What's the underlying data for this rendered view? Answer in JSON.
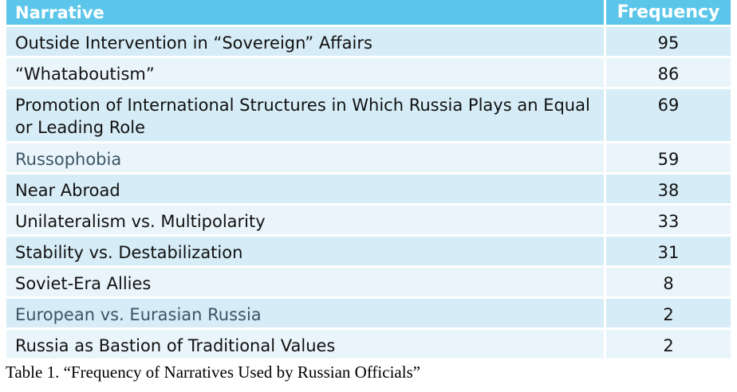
{
  "table": {
    "headers": {
      "narrative": "Narrative",
      "frequency": "Frequency"
    },
    "rows": [
      {
        "narrative": "Outside Intervention in “Sovereign” Affairs",
        "frequency": "95"
      },
      {
        "narrative": "“Whataboutism”",
        "frequency": "86"
      },
      {
        "narrative": "Promotion of International Structures in Which Russia Plays an Equal or Leading Role",
        "frequency": "69"
      },
      {
        "narrative": "Russophobia",
        "frequency": "59"
      },
      {
        "narrative": "Near Abroad",
        "frequency": "38"
      },
      {
        "narrative": "Unilateralism vs. Multipolarity",
        "frequency": "33"
      },
      {
        "narrative": "Stability vs. Destabilization",
        "frequency": "31"
      },
      {
        "narrative": "Soviet-Era Allies",
        "frequency": "8"
      },
      {
        "narrative": "European vs. Eurasian Russia",
        "frequency": "2"
      },
      {
        "narrative": "Russia as Bastion of Traditional Values",
        "frequency": "2"
      }
    ]
  },
  "caption": "Table 1. “Frequency of Narratives Used by Russian Officials”",
  "colors": {
    "header_bg": "#5cc6ea",
    "row_dark": "#d6ecf6",
    "row_light": "#eaf5fb"
  }
}
